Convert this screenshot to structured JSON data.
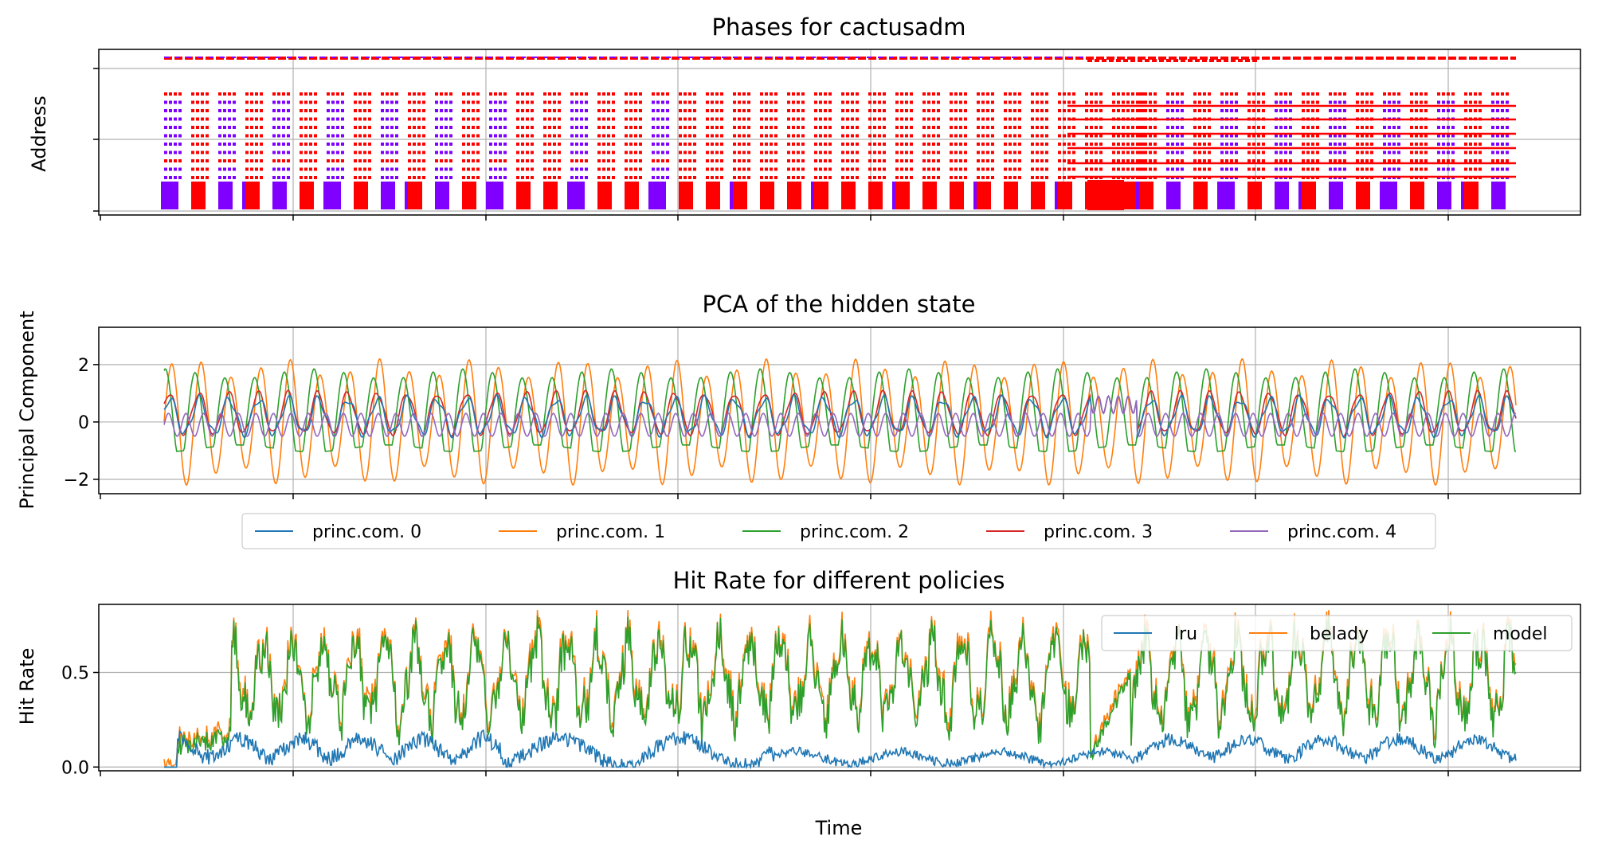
{
  "figure": {
    "xlabel": "Time"
  },
  "chart_data": [
    {
      "type": "scatter",
      "title": "Phases for cactusadm",
      "xlabel": "",
      "ylabel": "Address",
      "grid": true,
      "x_range": [
        0,
        1
      ],
      "y_range": [
        0,
        1
      ],
      "colors": [
        "#ff0000",
        "#7f00ff"
      ],
      "note_values": "address values are unlabeled; marks shown as relative bands",
      "phases": [
        "red",
        "purple"
      ]
    },
    {
      "type": "line",
      "title": "PCA of the hidden state",
      "xlabel": "",
      "ylabel": "Principal Component",
      "grid": true,
      "ylim": [
        -2.5,
        3.3
      ],
      "yticks": [
        2,
        0,
        -2
      ],
      "ytick_labels": [
        "2",
        "0",
        "−2"
      ],
      "legend_position": "bottom-center",
      "series": [
        {
          "name": "princ.com. 0",
          "color": "#1f77b4",
          "amplitude": 0.6,
          "offset": 0.2,
          "period": 0.022
        },
        {
          "name": "princ.com. 1",
          "color": "#ff7f0e",
          "amplitude": 2.2,
          "offset": 0.1,
          "period": 0.022
        },
        {
          "name": "princ.com. 2",
          "color": "#2ca02c",
          "amplitude": 1.7,
          "offset": 0.4,
          "period": 0.022
        },
        {
          "name": "princ.com. 3",
          "color": "#d62728",
          "amplitude": 0.7,
          "offset": 0.3,
          "period": 0.022
        },
        {
          "name": "princ.com. 4",
          "color": "#9467bd",
          "amplitude": 0.4,
          "offset": -0.1,
          "period": 0.022
        }
      ]
    },
    {
      "type": "line",
      "title": "Hit Rate for different policies",
      "xlabel": "Time",
      "ylabel": "Hit Rate",
      "grid": true,
      "ylim": [
        -0.02,
        0.86
      ],
      "yticks": [
        0.5,
        0.0
      ],
      "ytick_labels": [
        "0.5",
        "0.0"
      ],
      "legend_position": "top-right",
      "series": [
        {
          "name": "lru",
          "color": "#1f77b4",
          "mean": 0.09,
          "amplitude": 0.08
        },
        {
          "name": "belady",
          "color": "#ff7f0e",
          "mean": 0.48,
          "amplitude": 0.24
        },
        {
          "name": "model",
          "color": "#2ca02c",
          "mean": 0.46,
          "amplitude": 0.23
        }
      ]
    }
  ]
}
